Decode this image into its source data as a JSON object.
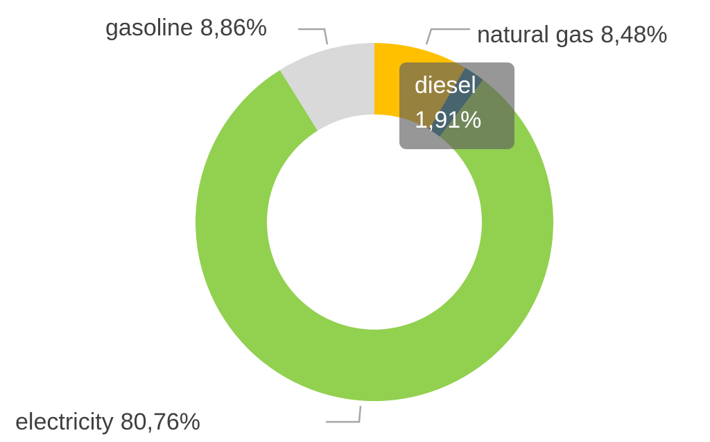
{
  "chart_data": {
    "type": "donut",
    "categories": [
      "natural gas",
      "diesel",
      "electricity",
      "gasoline"
    ],
    "values": [
      8.48,
      1.91,
      80.76,
      8.86
    ],
    "value_labels": [
      "8,48%",
      "1,91%",
      "80,76%",
      "8,86%"
    ],
    "colors": [
      "#FFC000",
      "#1B6D8C",
      "#92D050",
      "#D9D9D9"
    ]
  }
}
